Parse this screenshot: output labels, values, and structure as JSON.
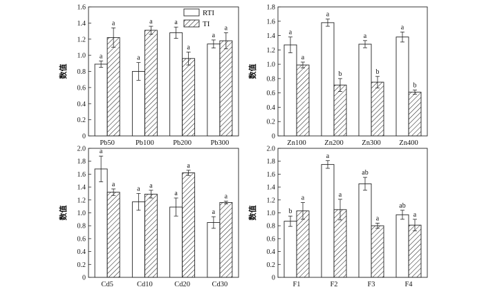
{
  "legend": {
    "entries": [
      "RTI",
      "TI"
    ],
    "placement": "top-right"
  },
  "chart_data": [
    {
      "type": "bar",
      "ylabel": "数值",
      "ylim": [
        0,
        1.6
      ],
      "yticks": [
        "0",
        "0.2",
        "0.4",
        "0.6",
        "0.8",
        "1.0",
        "1.2",
        "1.4",
        "1.6"
      ],
      "categories": [
        "Pb50",
        "Pb100",
        "Pb200",
        "Pb300"
      ],
      "series": [
        {
          "name": "RTI",
          "pattern": "open",
          "values": [
            0.89,
            0.8,
            1.28,
            1.14
          ],
          "errors": [
            0.04,
            0.11,
            0.07,
            0.05
          ],
          "letters": [
            "a",
            "a",
            "a",
            "a"
          ]
        },
        {
          "name": "TI",
          "pattern": "hatch",
          "values": [
            1.22,
            1.31,
            0.96,
            1.18
          ],
          "errors": [
            0.12,
            0.05,
            0.08,
            0.1
          ],
          "letters": [
            "a",
            "a",
            "a",
            "a"
          ]
        }
      ]
    },
    {
      "type": "bar",
      "ylabel": "数值",
      "ylim": [
        0,
        1.8
      ],
      "yticks": [
        "0",
        "0.2",
        "0.4",
        "0.6",
        "0.8",
        "1.0",
        "1.2",
        "1.4",
        "1.6",
        "1.8"
      ],
      "categories": [
        "Zn100",
        "Zn200",
        "Zn300",
        "Zn400"
      ],
      "series": [
        {
          "name": "RTI",
          "pattern": "open",
          "values": [
            1.27,
            1.58,
            1.28,
            1.38
          ],
          "errors": [
            0.11,
            0.05,
            0.05,
            0.07
          ],
          "letters": [
            "a",
            "a",
            "a",
            "a"
          ]
        },
        {
          "name": "TI",
          "pattern": "hatch",
          "values": [
            0.99,
            0.71,
            0.75,
            0.61
          ],
          "errors": [
            0.04,
            0.09,
            0.08,
            0.03
          ],
          "letters": [
            "a",
            "b",
            "b",
            "b"
          ]
        }
      ]
    },
    {
      "type": "bar",
      "ylabel": "数值",
      "ylim": [
        0,
        2.0
      ],
      "yticks": [
        "0",
        "0.2",
        "0.4",
        "0.6",
        "0.8",
        "1.0",
        "1.2",
        "1.4",
        "1.6",
        "1.8",
        "2.0"
      ],
      "categories": [
        "Cd5",
        "Cd10",
        "Cd20",
        "Cd30"
      ],
      "series": [
        {
          "name": "RTI",
          "pattern": "open",
          "values": [
            1.68,
            1.17,
            1.09,
            0.85
          ],
          "errors": [
            0.2,
            0.13,
            0.14,
            0.09
          ],
          "letters": [
            "a",
            "a",
            "a",
            "a"
          ]
        },
        {
          "name": "TI",
          "pattern": "hatch",
          "values": [
            1.32,
            1.29,
            1.62,
            1.16
          ],
          "errors": [
            0.05,
            0.06,
            0.04,
            0.02
          ],
          "letters": [
            "a",
            "a",
            "a",
            "a"
          ]
        }
      ]
    },
    {
      "type": "bar",
      "ylabel": "数值",
      "ylim": [
        0,
        2.0
      ],
      "yticks": [
        "0",
        "0.2",
        "0.4",
        "0.6",
        "0.8",
        "1.0",
        "1.2",
        "1.4",
        "1.6",
        "1.8",
        "2.0"
      ],
      "categories": [
        "F1",
        "F2",
        "F3",
        "F4"
      ],
      "series": [
        {
          "name": "RTI",
          "pattern": "open",
          "values": [
            0.87,
            1.75,
            1.45,
            0.97
          ],
          "errors": [
            0.08,
            0.06,
            0.1,
            0.07
          ],
          "letters": [
            "b",
            "a",
            "ab",
            "ab"
          ]
        },
        {
          "name": "TI",
          "pattern": "hatch",
          "values": [
            1.03,
            1.05,
            0.8,
            0.81
          ],
          "errors": [
            0.13,
            0.16,
            0.04,
            0.09
          ],
          "letters": [
            "a",
            "a",
            "a",
            "a"
          ]
        }
      ]
    }
  ]
}
